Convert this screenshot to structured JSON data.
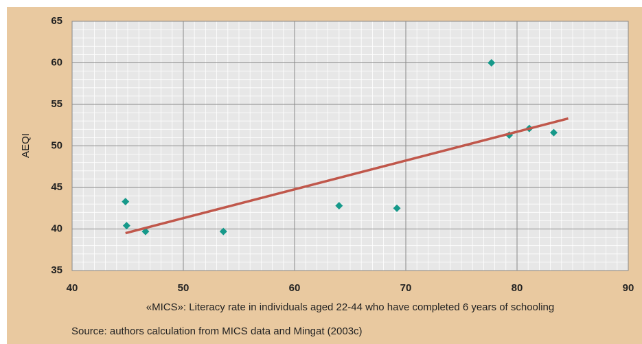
{
  "chart_data": {
    "type": "scatter",
    "x_label": "«MICS»: Literacy rate in individuals aged 22-44 who have completed 6 years of schooling",
    "y_label": "AEQI",
    "source": "Source: authors  calculation from MICS data and Mingat (2003c)",
    "xlim": [
      40,
      90
    ],
    "xticks": [
      40,
      50,
      60,
      70,
      80,
      90
    ],
    "ylim": [
      35,
      65
    ],
    "yticks": [
      35,
      40,
      45,
      50,
      55,
      60,
      65
    ],
    "grid": true,
    "series": [
      {
        "color": "#16998a",
        "x": [
          44.8,
          44.9,
          46.6,
          53.6,
          64.0,
          69.2,
          77.7,
          79.3,
          81.1,
          83.3
        ],
        "values": [
          43.3,
          40.4,
          39.7,
          39.7,
          42.8,
          42.5,
          60.0,
          51.3,
          52.1,
          51.6
        ]
      },
      {
        "type": "line",
        "color": "#c0574b",
        "x": [
          44.8,
          84.6
        ],
        "values": [
          39.5,
          53.3
        ]
      }
    ]
  }
}
